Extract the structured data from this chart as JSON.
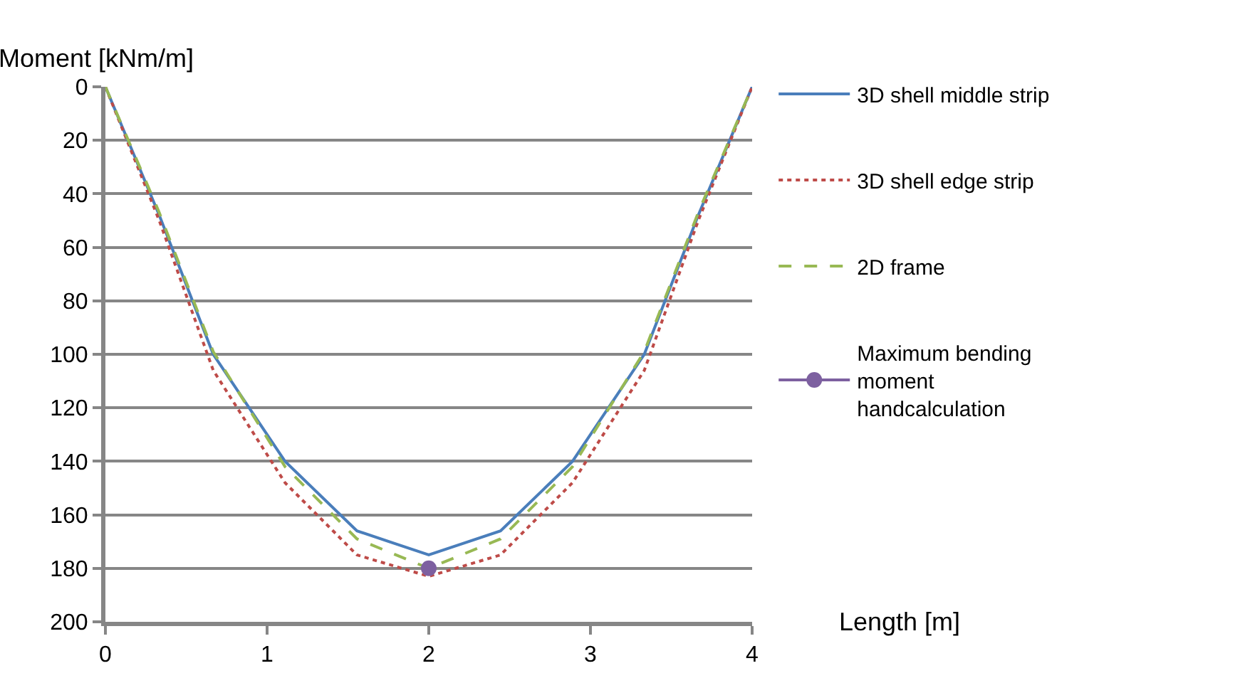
{
  "chart_data": {
    "type": "line",
    "xlabel": "Length [m]",
    "ylabel": "Moment [kNm/m]",
    "x": [
      0,
      0.333,
      0.667,
      1.111,
      1.556,
      2,
      2.444,
      2.889,
      3.333,
      3.667,
      4
    ],
    "series": [
      {
        "name": "3D shell middle strip",
        "color": "#4a7ebb",
        "line_style": "solid",
        "values": [
          0,
          48,
          100,
          140,
          166,
          175,
          166,
          140,
          100,
          48,
          0
        ]
      },
      {
        "name": "3D shell edge strip",
        "color": "#be4b48",
        "line_style": "dotted",
        "values": [
          0,
          50,
          106,
          148,
          175,
          183,
          175,
          148,
          106,
          50,
          0
        ]
      },
      {
        "name": "2D frame",
        "color": "#98b954",
        "line_style": "dashed",
        "values": [
          0,
          47,
          99,
          142,
          169,
          180,
          169,
          142,
          99,
          47,
          0
        ]
      },
      {
        "name": "Maximum bending moment handcalculation",
        "color": "#7d60a0",
        "line_style": "solid",
        "marker": "circle",
        "x": [
          2
        ],
        "values": [
          180
        ]
      }
    ],
    "xlim": [
      0,
      4
    ],
    "xticks": [
      0,
      1,
      2,
      3,
      4
    ],
    "ylim": [
      200,
      0
    ],
    "yticks": [
      0,
      20,
      40,
      60,
      80,
      100,
      120,
      140,
      160,
      180,
      200
    ],
    "grid": "y",
    "legend": "right"
  }
}
